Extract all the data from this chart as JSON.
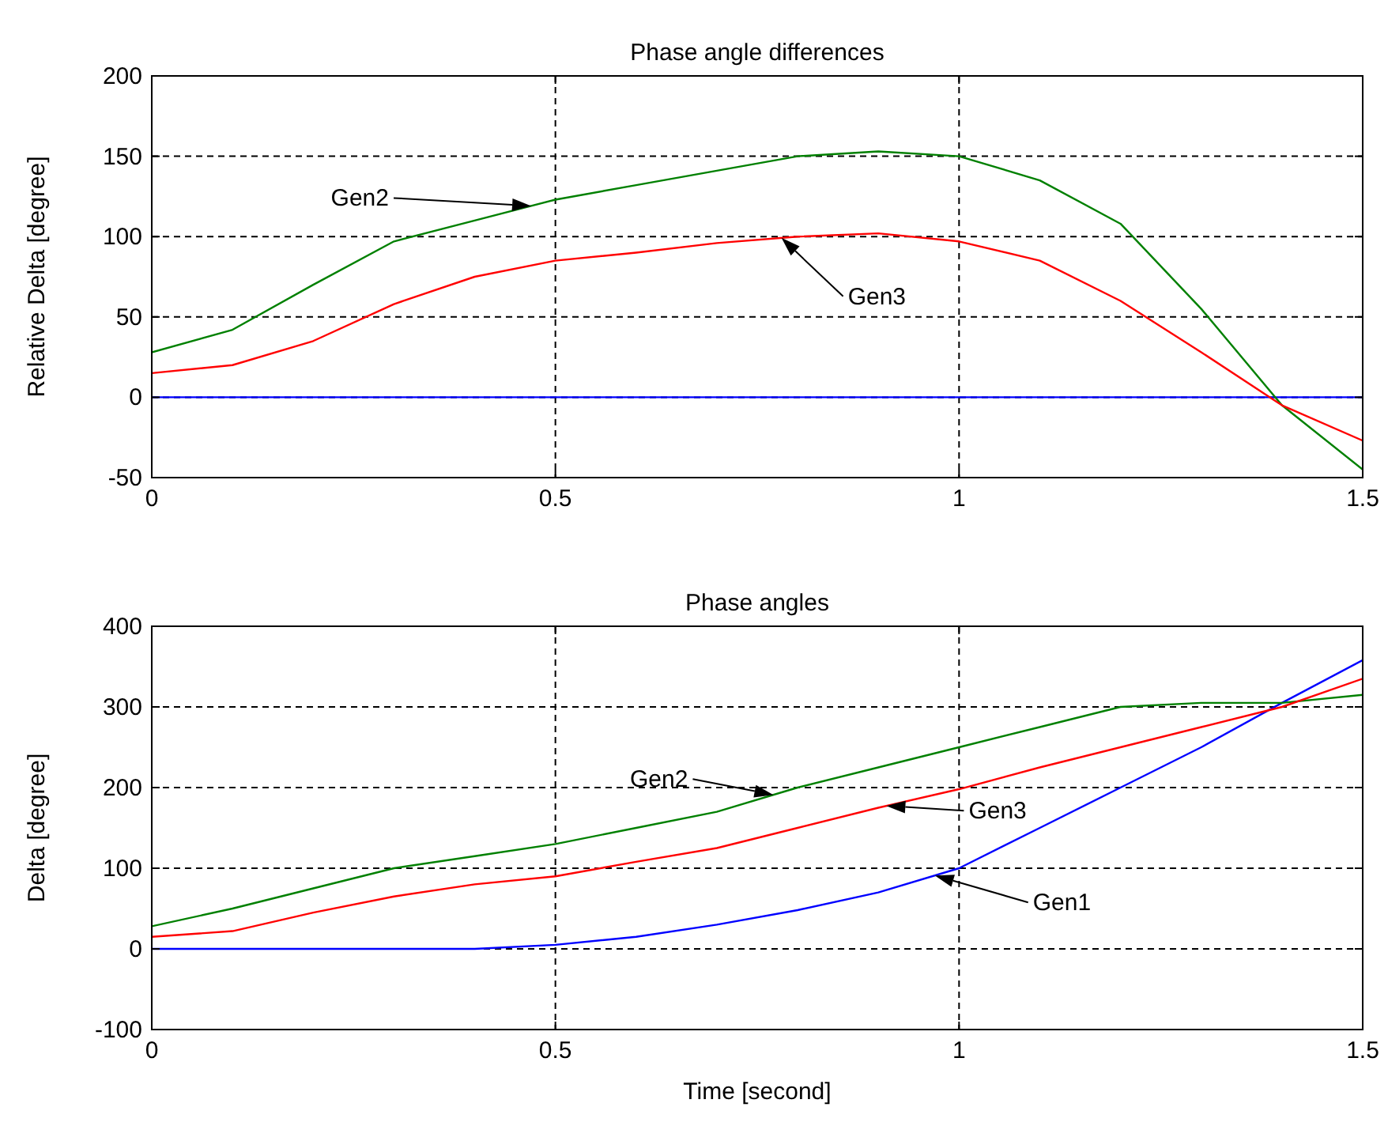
{
  "chart_data": [
    {
      "type": "line",
      "title": "Phase angle differences",
      "ylabel": "Relative Delta [degree]",
      "x": [
        0,
        0.1,
        0.2,
        0.3,
        0.4,
        0.5,
        0.6,
        0.7,
        0.8,
        0.9,
        1.0,
        1.1,
        1.2,
        1.3,
        1.4,
        1.5
      ],
      "series": [
        {
          "color": "#0000ff",
          "values": [
            0,
            0,
            0,
            0,
            0,
            0,
            0,
            0,
            0,
            0,
            0,
            0,
            0,
            0,
            0,
            0
          ]
        },
        {
          "name": "Gen2",
          "color": "#008000",
          "values": [
            28,
            42,
            70,
            97,
            110,
            123,
            132,
            141,
            150,
            153,
            150,
            135,
            108,
            55,
            -5,
            -45
          ]
        },
        {
          "name": "Gen3",
          "color": "#ff0000",
          "values": [
            15,
            20,
            35,
            58,
            75,
            85,
            90,
            96,
            100,
            102,
            97,
            85,
            60,
            28,
            -5,
            -27
          ]
        }
      ],
      "xlim": [
        0,
        1.5
      ],
      "xticks": [
        0,
        0.5,
        1,
        1.5
      ],
      "ylim": [
        -50,
        200
      ],
      "yticks": [
        -50,
        0,
        50,
        100,
        150,
        200
      ],
      "grid": true
    },
    {
      "type": "line",
      "title": "Phase angles",
      "ylabel": "Delta [degree]",
      "xlabel": "Time [second]",
      "x": [
        0,
        0.1,
        0.2,
        0.3,
        0.4,
        0.5,
        0.6,
        0.7,
        0.8,
        0.9,
        1.0,
        1.1,
        1.2,
        1.3,
        1.4,
        1.5
      ],
      "series": [
        {
          "name": "Gen1",
          "color": "#0000ff",
          "values": [
            0,
            0,
            0,
            0,
            0,
            5,
            15,
            30,
            48,
            70,
            100,
            150,
            200,
            250,
            305,
            358
          ]
        },
        {
          "name": "Gen2",
          "color": "#008000",
          "values": [
            28,
            50,
            75,
            100,
            115,
            130,
            150,
            170,
            200,
            225,
            250,
            275,
            300,
            305,
            305,
            315
          ]
        },
        {
          "name": "Gen3",
          "color": "#ff0000",
          "values": [
            15,
            22,
            45,
            65,
            80,
            90,
            108,
            125,
            150,
            175,
            198,
            225,
            250,
            275,
            300,
            335
          ]
        }
      ],
      "xlim": [
        0,
        1.5
      ],
      "xticks": [
        0,
        0.5,
        1,
        1.5
      ],
      "ylim": [
        -100,
        400
      ],
      "yticks": [
        -100,
        0,
        100,
        200,
        300,
        400
      ],
      "grid": true
    }
  ]
}
